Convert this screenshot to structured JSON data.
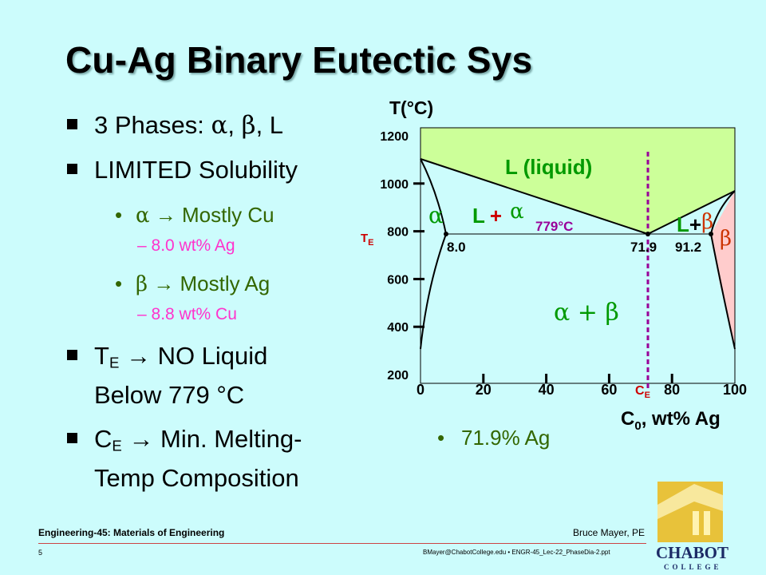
{
  "title": "Cu-Ag Binary Eutectic Sys",
  "bullets": {
    "b1": {
      "prefix": "3 Phases: ",
      "alpha": "α",
      "sep1": ", ",
      "beta": "β",
      "sep2": ", L"
    },
    "b2": "LIMITED Solubility",
    "b3": {
      "symbol": "α",
      "text": " → Mostly Cu"
    },
    "b3_sub": "– 8.0 wt% Ag",
    "b4": {
      "symbol": "β",
      "text": " → Mostly Ag"
    },
    "b4_sub": "– 8.8 wt% Cu",
    "b5": {
      "t": "T",
      "sub": "E",
      "line1": " → NO Liquid",
      "line2": "Below 779 °C"
    },
    "b6": {
      "c": "C",
      "sub": "E",
      "line1": " → Min. Melting-",
      "line2": "Temp Composition"
    },
    "ce_note": "71.9% Ag"
  },
  "chart_data": {
    "type": "phase-diagram",
    "system": "Cu-Ag",
    "ylabel": "T(°C)",
    "xlabel": {
      "main": "C",
      "sub": "0",
      "rest": ", wt% Ag"
    },
    "y_ticks": [
      "200",
      "400",
      "600",
      "800",
      "1000",
      "1200"
    ],
    "x_ticks": [
      "0",
      "20",
      "40",
      "60",
      "80",
      "100"
    ],
    "x_extra_tick": {
      "label": "C",
      "sub": "E",
      "value": 71.9
    },
    "y_extra_tick": {
      "label": "T",
      "sub": "E",
      "value": 779
    },
    "xlim": [
      0,
      100
    ],
    "ylim": [
      200,
      1200
    ],
    "melting_points": {
      "Cu": 1085,
      "Ag": 962
    },
    "eutectic": {
      "composition_wt_pct_Ag": 71.9,
      "temperature_C": 779
    },
    "alpha_max_solubility_wt_pct_Ag": 8.0,
    "beta_max_solubility_wt_pct_Ag": 91.2,
    "region_labels": {
      "liquid": "L (liquid)",
      "alpha": "α",
      "l_alpha_L": "L",
      "l_alpha_plus": "+",
      "l_alpha_alpha": "α",
      "l_beta_L": "L",
      "l_beta_plus": "+",
      "l_beta_beta": "β",
      "beta": "β",
      "alpha_beta": "α + β"
    },
    "annotations": {
      "eutectic_temp": "779°C",
      "alpha_comp": "8.0",
      "eutectic_comp": "71.9",
      "beta_comp": "91.2"
    },
    "colors": {
      "liquid": "#ccff99",
      "beta": "#ffcccc",
      "purple": "#990099",
      "green": "#009900",
      "alpha_red": "#cc0000",
      "te_red": "#cc0000",
      "ce_red": "#cc0000"
    }
  },
  "footer": {
    "course": "Engineering-45: Materials of Engineering",
    "author": "Bruce Mayer, PE",
    "page": "5",
    "file": "BMayer@ChabotCollege.edu  •  ENGR-45_Lec-22_PhaseDia-2.ppt"
  },
  "logo": {
    "name": "CHABOT",
    "sub": "COLLEGE"
  }
}
